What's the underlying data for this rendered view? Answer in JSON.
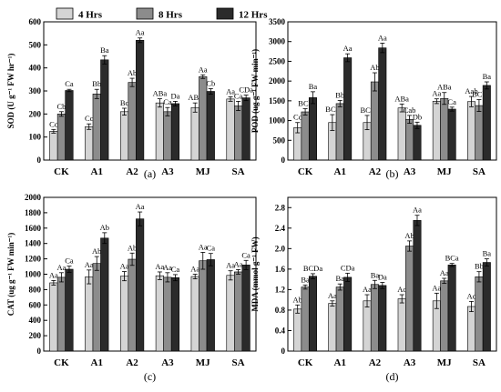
{
  "legend": [
    {
      "name": "4 Hrs",
      "color": "#d4d4d4"
    },
    {
      "name": "8 Hrs",
      "color": "#8c8c8c"
    },
    {
      "name": "12 Hrs",
      "color": "#2b2b2b"
    }
  ],
  "chart_data": [
    {
      "type": "bar",
      "panel": "(a)",
      "ylabel": "SOD (U g⁻¹ FW hr⁻¹)",
      "ylim": [
        0,
        600
      ],
      "yticks": [
        0,
        100,
        200,
        300,
        400,
        500,
        600
      ],
      "categories": [
        "CK",
        "A1",
        "A2",
        "A3",
        "MJ",
        "SA"
      ],
      "series": [
        {
          "name": "4 Hrs",
          "values": [
            125,
            145,
            210,
            248,
            228,
            265
          ],
          "errors": [
            8,
            12,
            15,
            18,
            20,
            10
          ],
          "labels": [
            "Cc",
            "Cc",
            "Bc",
            "ABa",
            "ABc",
            "Aa"
          ]
        },
        {
          "name": "8 Hrs",
          "values": [
            200,
            287,
            337,
            210,
            362,
            235
          ],
          "errors": [
            10,
            20,
            18,
            18,
            8,
            20
          ],
          "labels": [
            "Cb",
            "Bb",
            "Ab",
            "Ca",
            "Aa",
            "Ca"
          ]
        },
        {
          "name": "12 Hrs",
          "values": [
            302,
            435,
            520,
            245,
            298,
            270
          ],
          "errors": [
            5,
            18,
            10,
            10,
            12,
            12
          ],
          "labels": [
            "Ca",
            "Ba",
            "Aa",
            "Da",
            "Cb",
            "CDa"
          ]
        }
      ]
    },
    {
      "type": "bar",
      "panel": "(b)",
      "ylabel": "POD (ug g⁻¹ FW min⁻¹)",
      "ylim": [
        0,
        3500
      ],
      "yticks": [
        0,
        500,
        1000,
        1500,
        2000,
        2500,
        3000,
        3500
      ],
      "categories": [
        "CK",
        "A1",
        "A2",
        "A3",
        "MJ",
        "SA"
      ],
      "series": [
        {
          "name": "4 Hrs",
          "values": [
            820,
            950,
            950,
            1320,
            1490,
            1480
          ],
          "errors": [
            130,
            200,
            180,
            100,
            60,
            130
          ],
          "labels": [
            "Cc",
            "BCc",
            "BCc",
            "ABa",
            "Aa",
            "Aab"
          ]
        },
        {
          "name": "8 Hrs",
          "values": [
            1220,
            1430,
            1980,
            1030,
            1560,
            1380
          ],
          "errors": [
            80,
            80,
            230,
            100,
            150,
            150
          ],
          "labels": [
            "BCb",
            "Bb",
            "Ab",
            "Cab",
            "ABa",
            "BCb"
          ]
        },
        {
          "name": "12 Hrs",
          "values": [
            1580,
            2590,
            2840,
            880,
            1290,
            1890
          ],
          "errors": [
            150,
            100,
            120,
            80,
            50,
            90
          ],
          "labels": [
            "Ba",
            "Aa",
            "Aa",
            "Db",
            "Ca",
            "Ba"
          ]
        }
      ]
    },
    {
      "type": "bar",
      "panel": "(c)",
      "ylabel": "CAT (ug g⁻¹ FW min⁻¹)",
      "ylim": [
        0,
        2000
      ],
      "yticks": [
        0,
        200,
        400,
        600,
        800,
        1000,
        1200,
        1400,
        1600,
        1800,
        2000
      ],
      "categories": [
        "CK",
        "A1",
        "A2",
        "A3",
        "MJ",
        "SA"
      ],
      "series": [
        {
          "name": "4 Hrs",
          "values": [
            888,
            965,
            975,
            980,
            970,
            985
          ],
          "errors": [
            30,
            90,
            60,
            50,
            30,
            60
          ],
          "labels": [
            "Aa",
            "Aa",
            "Aa",
            "Aa",
            "Aa",
            "Aa"
          ]
        },
        {
          "name": "8 Hrs",
          "values": [
            960,
            1140,
            1195,
            960,
            1175,
            1030
          ],
          "errors": [
            60,
            90,
            80,
            60,
            110,
            30
          ],
          "labels": [
            "Aa",
            "Ab",
            "Ab",
            "Aa",
            "Aa",
            "Aa"
          ]
        },
        {
          "name": "12 Hrs",
          "values": [
            1065,
            1470,
            1720,
            955,
            1190,
            1120
          ],
          "errors": [
            40,
            70,
            90,
            40,
            80,
            60
          ],
          "labels": [
            "Ca",
            "Ab",
            "Aa",
            "Ca",
            "Ca",
            "Ca"
          ]
        }
      ]
    },
    {
      "type": "bar",
      "panel": "(d)",
      "ylabel": "MDA (mmol g⁻¹ FW)",
      "ylim": [
        0,
        3.0
      ],
      "yticks": [
        0,
        0.4,
        0.8,
        1.2,
        1.6,
        2.0,
        2.4,
        2.8
      ],
      "categories": [
        "CK",
        "A1",
        "A2",
        "A3",
        "MJ",
        "SA"
      ],
      "series": [
        {
          "name": "4 Hrs",
          "values": [
            0.82,
            0.93,
            0.98,
            1.02,
            0.98,
            0.87
          ],
          "errors": [
            0.08,
            0.05,
            0.12,
            0.08,
            0.15,
            0.1
          ],
          "labels": [
            "Ab",
            "Aa",
            "Aa",
            "Ac",
            "Aa",
            "Ac"
          ]
        },
        {
          "name": "8 Hrs",
          "values": [
            1.25,
            1.25,
            1.3,
            2.05,
            1.37,
            1.45
          ],
          "errors": [
            0.04,
            0.06,
            0.08,
            0.1,
            0.05,
            0.1
          ],
          "labels": [
            "Ba",
            "Ba",
            "Ba",
            "Ab",
            "Aa",
            "Bb"
          ]
        },
        {
          "name": "12 Hrs",
          "values": [
            1.46,
            1.44,
            1.28,
            2.55,
            1.68,
            1.73
          ],
          "errors": [
            0.05,
            0.08,
            0.06,
            0.1,
            0.03,
            0.07
          ],
          "labels": [
            "BCDa",
            "CDa",
            "Da",
            "Aa",
            "BCa",
            "Ba"
          ]
        }
      ]
    }
  ]
}
